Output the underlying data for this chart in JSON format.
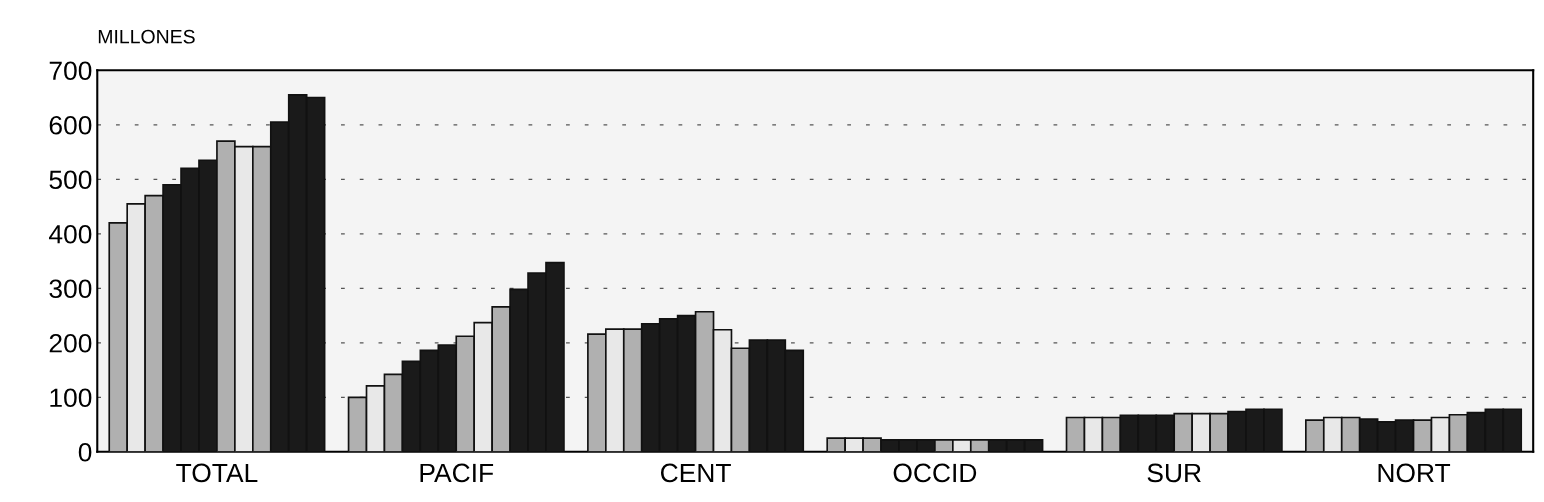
{
  "chart_data": {
    "type": "bar",
    "ylabel": "MILLONES",
    "categories": [
      "TOTAL",
      "PACIF",
      "CENT",
      "OCCID",
      "SUR",
      "NORT"
    ],
    "series": [
      {
        "color": "#b0b0b0",
        "values": [
          420,
          100,
          216,
          25,
          63,
          58
        ]
      },
      {
        "color": "#e8e8e8",
        "values": [
          455,
          121,
          225,
          25,
          63,
          63
        ]
      },
      {
        "color": "#b0b0b0",
        "values": [
          470,
          142,
          225,
          25,
          63,
          63
        ]
      },
      {
        "color": "#1a1a1a",
        "values": [
          490,
          166,
          235,
          22,
          67,
          60
        ]
      },
      {
        "color": "#1a1a1a",
        "values": [
          520,
          186,
          244,
          22,
          67,
          55
        ]
      },
      {
        "color": "#1a1a1a",
        "values": [
          535,
          196,
          250,
          22,
          67,
          58
        ]
      },
      {
        "color": "#b0b0b0",
        "values": [
          570,
          212,
          257,
          22,
          70,
          58
        ]
      },
      {
        "color": "#e8e8e8",
        "values": [
          560,
          237,
          224,
          22,
          70,
          63
        ]
      },
      {
        "color": "#b0b0b0",
        "values": [
          560,
          266,
          190,
          22,
          70,
          68
        ]
      },
      {
        "color": "#1a1a1a",
        "values": [
          605,
          298,
          205,
          22,
          74,
          72
        ]
      },
      {
        "color": "#1a1a1a",
        "values": [
          655,
          328,
          205,
          22,
          78,
          78
        ]
      },
      {
        "color": "#1a1a1a",
        "values": [
          650,
          347,
          186,
          22,
          78,
          78
        ]
      }
    ],
    "ylim": [
      0,
      700
    ],
    "yticks": [
      0,
      100,
      200,
      300,
      400,
      500,
      600,
      700
    ],
    "grid": "y"
  }
}
